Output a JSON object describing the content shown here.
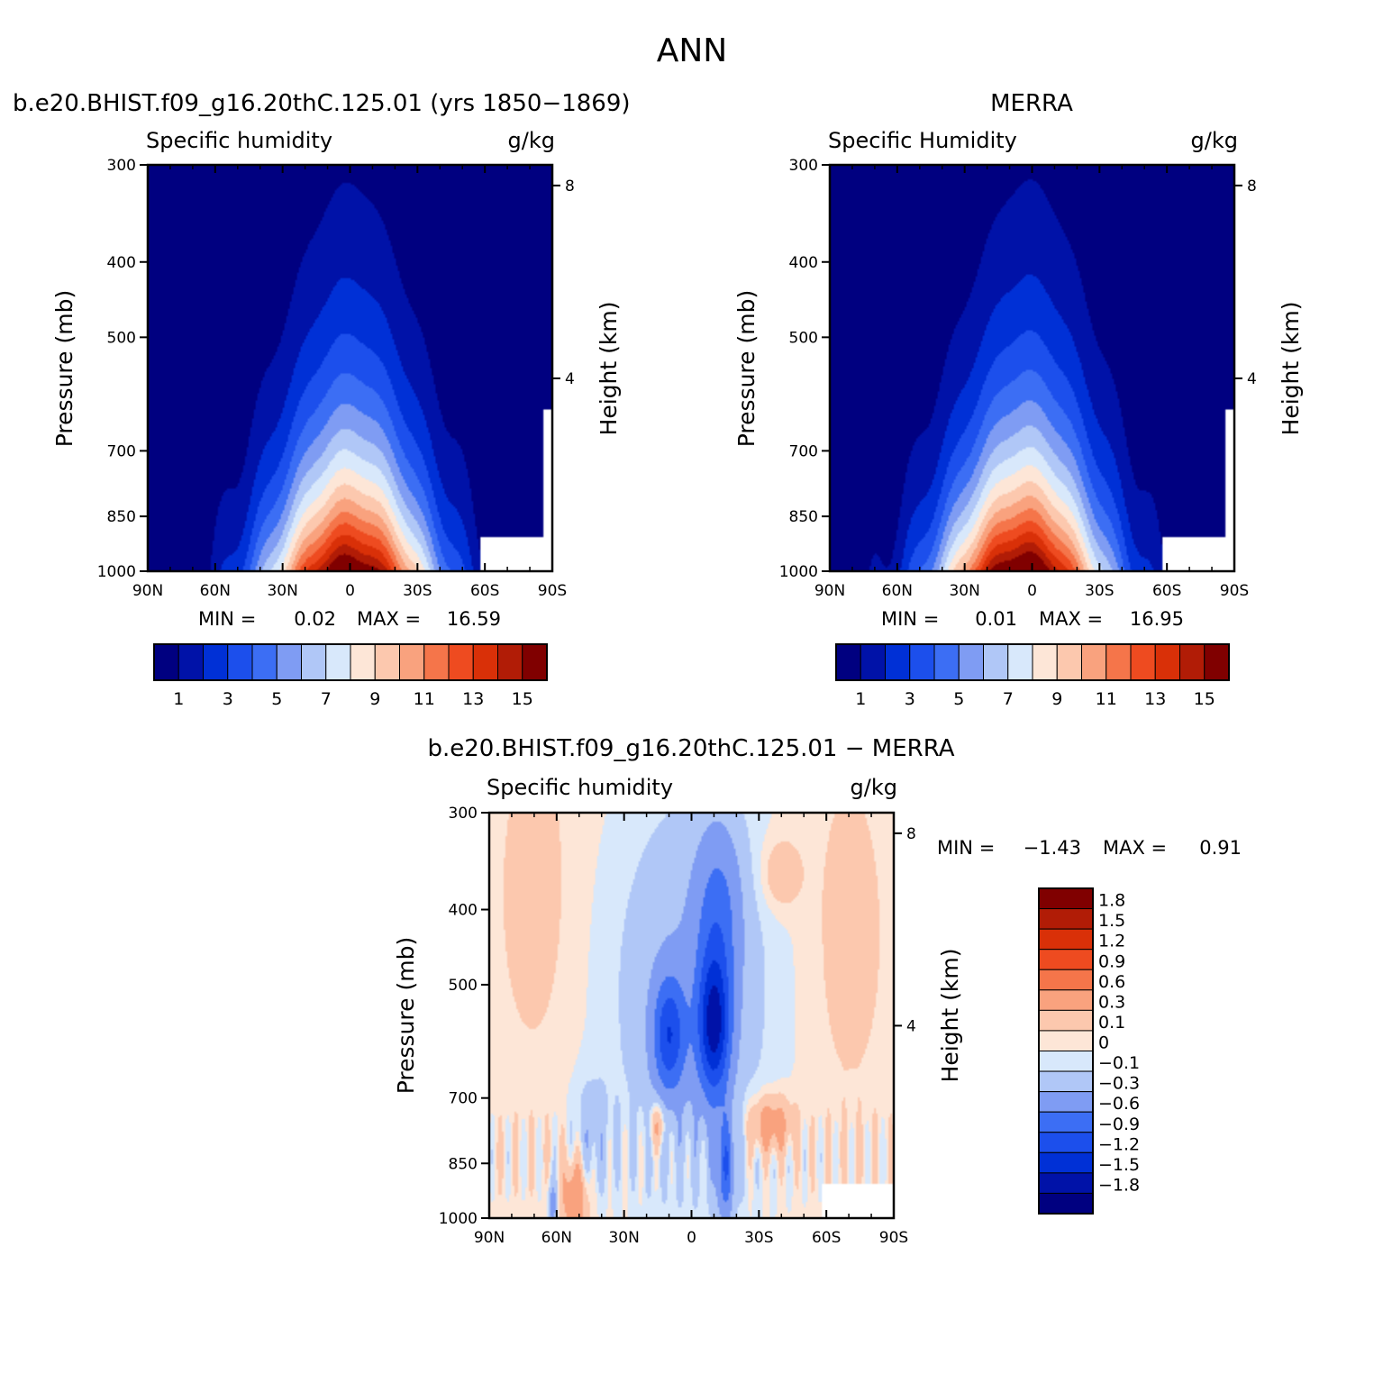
{
  "figure": {
    "title": "ANN",
    "colors": {
      "seq": [
        "#000080",
        "#0012a8",
        "#0030d6",
        "#1c4fec",
        "#3c6ef4",
        "#7f9cf3",
        "#b0c7f7",
        "#d8e8fb",
        "#fde6d7",
        "#fcc8ae",
        "#f9a27e",
        "#f5754a",
        "#ee4b20",
        "#d93008",
        "#b11c06",
        "#800000"
      ],
      "diff": [
        "#000080",
        "#0012a8",
        "#0030d6",
        "#1c4fec",
        "#3c6ef4",
        "#7f9cf3",
        "#b0c7f7",
        "#d8e8fb",
        "#fde6d7",
        "#fcc8ae",
        "#f9a27e",
        "#f5754a",
        "#ee4b20",
        "#d93008",
        "#b11c06",
        "#800000"
      ]
    }
  },
  "chart_data": [
    {
      "id": "model",
      "type": "heatmap",
      "title": "b.e20.BHIST.f09_g16.20thC.125.01 (yrs 1850-1869)",
      "subtitle_left": "Specific humidity",
      "units": "g/kg",
      "xlabel": "",
      "ylabel": "Pressure (mb)",
      "ylabel_right": "Height (km)",
      "x_ticks": [
        "90N",
        "60N",
        "30N",
        "0",
        "30S",
        "60S",
        "90S"
      ],
      "x_range": [
        90,
        -90
      ],
      "y_ticks": [
        300,
        400,
        500,
        700,
        850,
        1000
      ],
      "y_range": [
        300,
        1000
      ],
      "y_scale": "log",
      "right_ticks": [
        "8",
        "4"
      ],
      "min_label": "MIN =",
      "min": "0.02",
      "max_label": "MAX =",
      "max": "16.59",
      "peak": 16.59,
      "peak_lat": 0,
      "levels": [
        1,
        2,
        3,
        4,
        5,
        6,
        7,
        8,
        9,
        10,
        11,
        12,
        13,
        14,
        15
      ],
      "colorbar_labels": [
        "1",
        "3",
        "5",
        "7",
        "9",
        "11",
        "13",
        "15"
      ]
    },
    {
      "id": "obs",
      "type": "heatmap",
      "title": "MERRA",
      "subtitle_left": "Specific Humidity",
      "units": "g/kg",
      "xlabel": "",
      "ylabel": "Pressure (mb)",
      "ylabel_right": "Height (km)",
      "x_ticks": [
        "90N",
        "60N",
        "30N",
        "0",
        "30S",
        "60S",
        "90S"
      ],
      "x_range": [
        90,
        -90
      ],
      "y_ticks": [
        300,
        400,
        500,
        700,
        850,
        1000
      ],
      "y_range": [
        300,
        1000
      ],
      "y_scale": "log",
      "right_ticks": [
        "8",
        "4"
      ],
      "min_label": "MIN =",
      "min": "0.01",
      "max_label": "MAX =",
      "max": "16.95",
      "peak": 16.95,
      "peak_lat": 4,
      "levels": [
        1,
        2,
        3,
        4,
        5,
        6,
        7,
        8,
        9,
        10,
        11,
        12,
        13,
        14,
        15
      ],
      "colorbar_labels": [
        "1",
        "3",
        "5",
        "7",
        "9",
        "11",
        "13",
        "15"
      ]
    },
    {
      "id": "diff",
      "type": "heatmap",
      "title": "b.e20.BHIST.f09_g16.20thC.125.01 - MERRA",
      "subtitle_left": "Specific humidity",
      "units": "g/kg",
      "xlabel": "",
      "ylabel": "Pressure (mb)",
      "ylabel_right": "Height (km)",
      "x_ticks": [
        "90N",
        "60N",
        "30N",
        "0",
        "30S",
        "60S",
        "90S"
      ],
      "x_range": [
        90,
        -90
      ],
      "y_ticks": [
        300,
        400,
        500,
        700,
        850,
        1000
      ],
      "y_range": [
        300,
        1000
      ],
      "y_scale": "log",
      "right_ticks": [
        "8",
        "4"
      ],
      "min_label": "MIN =",
      "min": "-1.43",
      "max_label": "MAX =",
      "max": "0.91",
      "levels": [
        -1.8,
        -1.5,
        -1.2,
        -0.9,
        -0.6,
        -0.3,
        -0.1,
        0,
        0.1,
        0.3,
        0.6,
        0.9,
        1.2,
        1.5,
        1.8
      ],
      "colorbar_labels": [
        "1.8",
        "1.5",
        "1.2",
        "0.9",
        "0.6",
        "0.3",
        "0.1",
        "0",
        "-0.1",
        "-0.3",
        "-0.6",
        "-0.9",
        "-1.2",
        "-1.5",
        "-1.8"
      ]
    }
  ]
}
